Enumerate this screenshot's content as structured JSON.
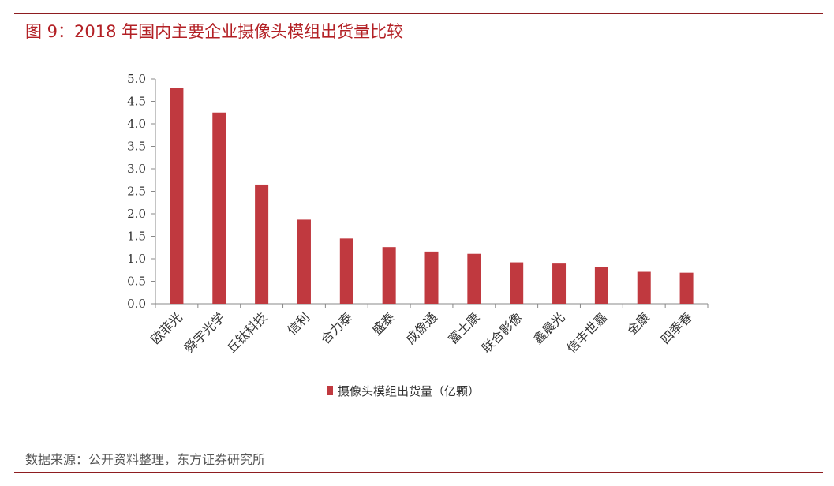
{
  "figure": {
    "title": "图 9：2018 年国内主要企业摄像头模组出货量比较",
    "source": "数据来源：公开资料整理，东方证券研究所"
  },
  "colors": {
    "bar": "#c0393f",
    "rule": "#8e1d20",
    "title": "#b32025",
    "axis": "#888888"
  },
  "chart_data": {
    "type": "bar",
    "categories": [
      "欧菲光",
      "舜宇光学",
      "丘钛科技",
      "信利",
      "合力泰",
      "盛泰",
      "成像通",
      "富士康",
      "联合影像",
      "鑫晨光",
      "信丰世嘉",
      "金康",
      "四季春"
    ],
    "series": [
      {
        "name": "摄像头模组出货量（亿颗）",
        "values": [
          4.8,
          4.25,
          2.65,
          1.87,
          1.45,
          1.26,
          1.16,
          1.11,
          0.92,
          0.91,
          0.82,
          0.71,
          0.69
        ]
      }
    ],
    "yticks": [
      "5.0",
      "4.5",
      "4.0",
      "3.5",
      "3.0",
      "2.5",
      "2.0",
      "1.5",
      "1.0",
      "0.5",
      "0.0"
    ],
    "ylim": [
      0,
      5
    ],
    "legend_position": "bottom",
    "grid": false
  }
}
